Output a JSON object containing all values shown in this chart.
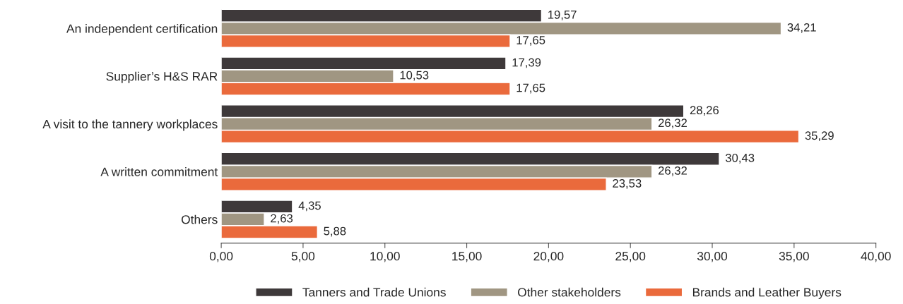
{
  "chart_data": {
    "type": "bar",
    "orientation": "horizontal",
    "categories": [
      "An independent certification",
      "Supplier’s H&S RAR",
      "A visit to the tannery workplaces",
      "A written commitment",
      "Others"
    ],
    "series": [
      {
        "name": "Tanners and Trade Unions",
        "color": "#3e393a",
        "values": [
          19.57,
          17.39,
          28.26,
          30.43,
          4.35
        ],
        "value_labels": [
          "19,57",
          "17,39",
          "28,26",
          "30,43",
          "4,35"
        ]
      },
      {
        "name": "Other stakeholders",
        "color": "#a09682",
        "values": [
          34.21,
          10.53,
          26.32,
          26.32,
          2.63
        ],
        "value_labels": [
          "34,21",
          "10,53",
          "26,32",
          "26,32",
          "2,63"
        ]
      },
      {
        "name": "Brands and Leather Buyers",
        "color": "#ea6a3c",
        "values": [
          17.65,
          17.65,
          35.29,
          23.53,
          5.88
        ],
        "value_labels": [
          "17,65",
          "17,65",
          "35,29",
          "23,53",
          "5,88"
        ]
      }
    ],
    "xlim": [
      0,
      40
    ],
    "xticks": [
      {
        "value": 0,
        "label": "0,00"
      },
      {
        "value": 5,
        "label": "5,00"
      },
      {
        "value": 10,
        "label": "10,00"
      },
      {
        "value": 15,
        "label": "15,00"
      },
      {
        "value": 20,
        "label": "20,00"
      },
      {
        "value": 25,
        "label": "25,00"
      },
      {
        "value": 30,
        "label": "30,00"
      },
      {
        "value": 35,
        "label": "35,00"
      },
      {
        "value": 40,
        "label": "40,00"
      }
    ],
    "legend": "bottom",
    "grid": false
  }
}
